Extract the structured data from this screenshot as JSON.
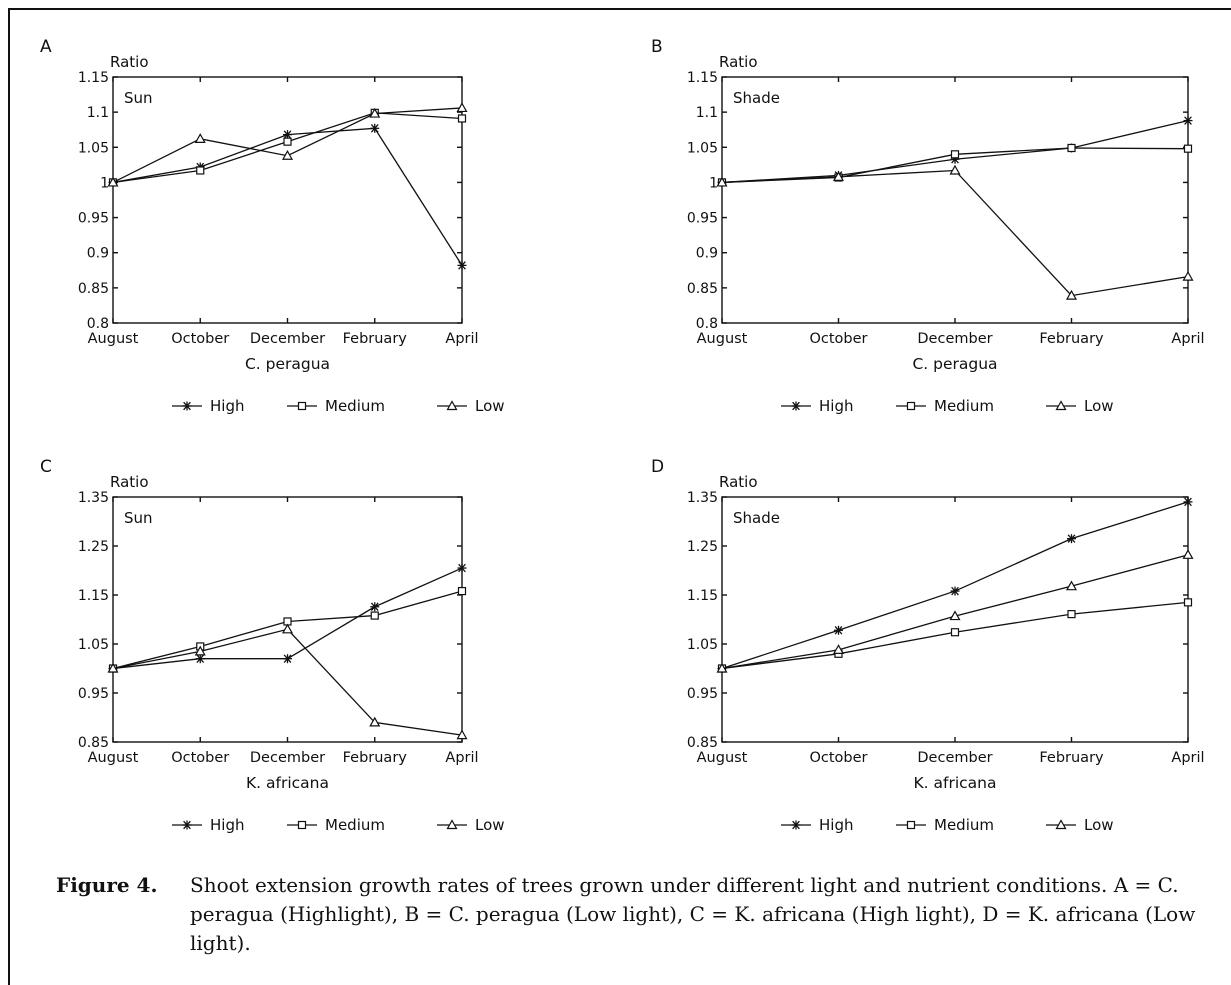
{
  "chart_data": [
    {
      "panel": "A",
      "type": "line",
      "ylabel": "Ratio",
      "condition": "Sun",
      "xlabel": "C. peragua",
      "categories": [
        "August",
        "October",
        "December",
        "February",
        "April"
      ],
      "ylim": [
        0.8,
        1.15
      ],
      "yticks": [
        0.8,
        0.85,
        0.9,
        0.95,
        1,
        1.05,
        1.1,
        1.15
      ],
      "ytick_labels": [
        "0.8",
        "0.85",
        "0.9",
        "0.95",
        "1",
        "1.05",
        "1.1",
        "1.15"
      ],
      "series": [
        {
          "name": "High",
          "marker": "star",
          "values": [
            1.0,
            1.022,
            1.068,
            1.077,
            0.882
          ]
        },
        {
          "name": "Medium",
          "marker": "square",
          "values": [
            1.0,
            1.017,
            1.058,
            1.099,
            1.091
          ]
        },
        {
          "name": "Low",
          "marker": "triangle",
          "values": [
            1.0,
            1.062,
            1.038,
            1.098,
            1.106
          ]
        }
      ]
    },
    {
      "panel": "B",
      "type": "line",
      "ylabel": "Ratio",
      "condition": "Shade",
      "xlabel": "C. peragua",
      "categories": [
        "August",
        "October",
        "December",
        "February",
        "April"
      ],
      "ylim": [
        0.8,
        1.15
      ],
      "yticks": [
        0.8,
        0.85,
        0.9,
        0.95,
        1,
        1.05,
        1.1,
        1.15
      ],
      "ytick_labels": [
        "0.8",
        "0.85",
        "0.9",
        "0.95",
        "1",
        "1.05",
        "1.1",
        "1.15"
      ],
      "series": [
        {
          "name": "High",
          "marker": "star",
          "values": [
            1.0,
            1.01,
            1.033,
            1.049,
            1.088
          ]
        },
        {
          "name": "Medium",
          "marker": "square",
          "values": [
            1.0,
            1.007,
            1.04,
            1.049,
            1.048
          ]
        },
        {
          "name": "Low",
          "marker": "triangle",
          "values": [
            1.0,
            1.008,
            1.017,
            0.839,
            0.866
          ]
        }
      ]
    },
    {
      "panel": "C",
      "type": "line",
      "ylabel": "Ratio",
      "condition": "Sun",
      "xlabel": "K. africana",
      "categories": [
        "August",
        "October",
        "December",
        "February",
        "April"
      ],
      "ylim": [
        0.85,
        1.35
      ],
      "yticks": [
        0.85,
        0.95,
        1.05,
        1.15,
        1.25,
        1.35
      ],
      "ytick_labels": [
        "0.85",
        "0.95",
        "1.05",
        "1.15",
        "1.25",
        "1.35"
      ],
      "series": [
        {
          "name": "High",
          "marker": "star",
          "values": [
            1.0,
            1.02,
            1.02,
            1.126,
            1.205
          ]
        },
        {
          "name": "Medium",
          "marker": "square",
          "values": [
            1.0,
            1.045,
            1.096,
            1.108,
            1.158
          ]
        },
        {
          "name": "Low",
          "marker": "triangle",
          "values": [
            1.0,
            1.035,
            1.08,
            0.89,
            0.864
          ]
        }
      ]
    },
    {
      "panel": "D",
      "type": "line",
      "ylabel": "Ratio",
      "condition": "Shade",
      "xlabel": "K. africana",
      "categories": [
        "August",
        "October",
        "December",
        "February",
        "April"
      ],
      "ylim": [
        0.85,
        1.35
      ],
      "yticks": [
        0.85,
        0.95,
        1.05,
        1.15,
        1.25,
        1.35
      ],
      "ytick_labels": [
        "0.85",
        "0.95",
        "1.05",
        "1.15",
        "1.25",
        "1.35"
      ],
      "series": [
        {
          "name": "High",
          "marker": "star",
          "values": [
            1.0,
            1.078,
            1.158,
            1.265,
            1.34
          ]
        },
        {
          "name": "Medium",
          "marker": "square",
          "values": [
            1.0,
            1.03,
            1.074,
            1.111,
            1.135
          ]
        },
        {
          "name": "Low",
          "marker": "triangle",
          "values": [
            1.0,
            1.038,
            1.107,
            1.168,
            1.232
          ]
        }
      ]
    }
  ],
  "caption": {
    "label": "Figure 4.",
    "text": "Shoot extension growth rates of trees grown under different light and nutrient conditions. A = C. peragua (Highlight), B = C. peragua (Low light), C = K. africana (High light), D = K. africana (Low light)."
  }
}
